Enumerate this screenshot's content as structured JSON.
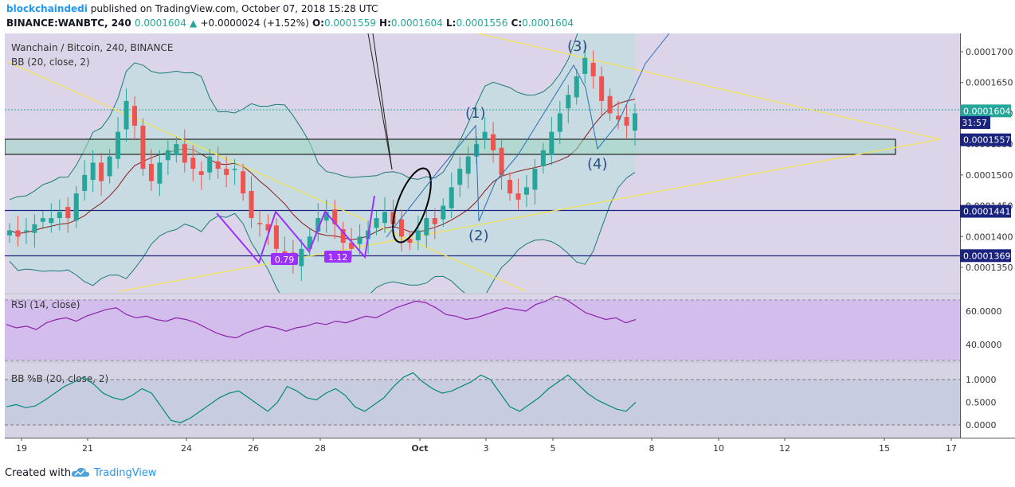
{
  "header": {
    "author": "blockchaindedi",
    "published": "published on TradingView.com, October 07, 2018 15:28 UTC",
    "symbol_line": "BINANCE:WANBTC, 240",
    "last": "0.0001604",
    "change_arrow": "▲",
    "change": "+0.0000024 (+1.52%)",
    "o_label": "O:",
    "o": "0.0001559",
    "h_label": "H:",
    "h": "0.0001604",
    "l_label": "L:",
    "l": "0.0001556",
    "c_label": "C:",
    "c": "0.0001604"
  },
  "pane_main": {
    "title": "Wanchain / Bitcoin, 240, BINANCE",
    "indicator": "BB (20, close, 2)"
  },
  "pane_rsi": {
    "title": "RSI (14, close)"
  },
  "pane_bbpb": {
    "title": "BB %B (20, close, 2)"
  },
  "price_axis": [
    "0.0001700",
    "0.0001650",
    "0.0001600",
    "0.0001550",
    "0.0001500",
    "0.0001450",
    "0.0001400",
    "0.0001350"
  ],
  "price_tags": [
    {
      "value": 0.0001604,
      "label": "0.0001604",
      "bg": "#26a69a"
    },
    {
      "value": 0.0001557,
      "label": "0.0001557",
      "bg": "#1a237e"
    },
    {
      "value": 0.0001441,
      "label": "0.0001441",
      "bg": "#1a237e"
    },
    {
      "value": 0.0001369,
      "label": "0.0001369",
      "bg": "#1a237e"
    }
  ],
  "countdown": "31:57",
  "rsi_axis": [
    "60.0000",
    "40.0000"
  ],
  "bbpb_axis": [
    "1.0000",
    "0.5000",
    "0.0000"
  ],
  "time_axis": [
    "19",
    "21",
    "24",
    "26",
    "28",
    "Oct",
    "3",
    "5",
    "8",
    "10",
    "12",
    "15",
    "17"
  ],
  "annotations": {
    "waves": [
      "(1)",
      "(2)",
      "(3)",
      "(4)"
    ],
    "fib_a": "0.79",
    "fib_b": "1.12"
  },
  "colors": {
    "bull": "#26a69a",
    "bear": "#ef5350",
    "bb_band": "#1b7a78",
    "bb_basis": "#8b1a1a",
    "pane_bg": "#dcd5ea",
    "bb_fill": "#b8e0da",
    "rsi": "#8e24aa",
    "bbpb": "#00897b",
    "trend": "#ffeb3b",
    "level": "#1a237e",
    "wave": "#2a6fb5",
    "fib": "#9b30ff"
  },
  "chart_data": [
    {
      "type": "candlestick",
      "title": "Wanchain / Bitcoin, 240, BINANCE",
      "x_range": [
        "Sep 18",
        "Oct 17"
      ],
      "ylim": [
        0.000132,
        0.000173
      ],
      "horizontal_levels": [
        0.0001557,
        0.0001441,
        0.0001369
      ],
      "last_price": 0.0001604,
      "close_series": [
        0.000141,
        0.00014,
        0.000141,
        0.000142,
        0.000143,
        0.000143,
        0.000144,
        0.000143,
        0.000147,
        0.00015,
        0.000152,
        0.000149,
        0.000153,
        0.000157,
        0.000162,
        0.000158,
        0.000151,
        0.000149,
        0.000152,
        0.000154,
        0.000155,
        0.000152,
        0.000151,
        0.00015,
        0.000153,
        0.000151,
        0.00015,
        0.000151,
        0.000147,
        0.000143,
        0.000142,
        0.000141,
        0.000138,
        0.000137,
        0.000136,
        0.000138,
        0.00014,
        0.000143,
        0.000144,
        0.000142,
        0.000139,
        0.000138,
        0.00014,
        0.000141,
        0.000143,
        0.000144,
        0.000142,
        0.00014,
        0.000139,
        0.000141,
        0.000143,
        0.000142,
        0.000145,
        0.000148,
        0.000151,
        0.000153,
        0.000155,
        0.000157,
        0.000154,
        0.00015,
        0.000147,
        0.000146,
        0.000148,
        0.000151,
        0.000154,
        0.000157,
        0.00016,
        0.000163,
        0.000166,
        0.000169,
        0.000166,
        0.000162,
        0.00016,
        0.000159,
        0.000158,
        0.00016
      ],
      "series": [
        {
          "name": "BB (20, close, 2)",
          "values": []
        }
      ]
    },
    {
      "type": "line",
      "title": "RSI (14, close)",
      "ylim": [
        30,
        70
      ],
      "ticks": [
        60,
        40
      ],
      "values": [
        52,
        50,
        51,
        49,
        53,
        55,
        56,
        54,
        57,
        59,
        61,
        62,
        58,
        56,
        57,
        55,
        54,
        56,
        55,
        53,
        50,
        47,
        45,
        44,
        47,
        49,
        51,
        50,
        48,
        50,
        51,
        53,
        52,
        54,
        53,
        55,
        57,
        56,
        59,
        62,
        64,
        66,
        65,
        62,
        58,
        57,
        55,
        56,
        58,
        60,
        62,
        61,
        60,
        64,
        66,
        69,
        67,
        63,
        59,
        57,
        55,
        56,
        53,
        55
      ]
    },
    {
      "type": "line",
      "title": "BB %B (20, close, 2)",
      "ylim": [
        -0.1,
        1.2
      ],
      "ticks": [
        1.0,
        0.5,
        0.0
      ],
      "values": [
        0.4,
        0.45,
        0.38,
        0.42,
        0.55,
        0.7,
        0.85,
        0.95,
        1.05,
        0.9,
        0.7,
        0.6,
        0.55,
        0.65,
        0.8,
        0.7,
        0.4,
        0.1,
        0.05,
        0.15,
        0.3,
        0.45,
        0.6,
        0.7,
        0.75,
        0.6,
        0.45,
        0.3,
        0.5,
        0.85,
        0.75,
        0.6,
        0.55,
        0.7,
        0.8,
        0.65,
        0.4,
        0.3,
        0.45,
        0.6,
        0.85,
        1.05,
        1.15,
        0.95,
        0.8,
        0.7,
        0.75,
        0.85,
        0.95,
        1.1,
        1.0,
        0.7,
        0.4,
        0.3,
        0.45,
        0.6,
        0.8,
        0.95,
        1.1,
        0.9,
        0.7,
        0.55,
        0.45,
        0.35,
        0.3,
        0.5
      ]
    }
  ]
}
